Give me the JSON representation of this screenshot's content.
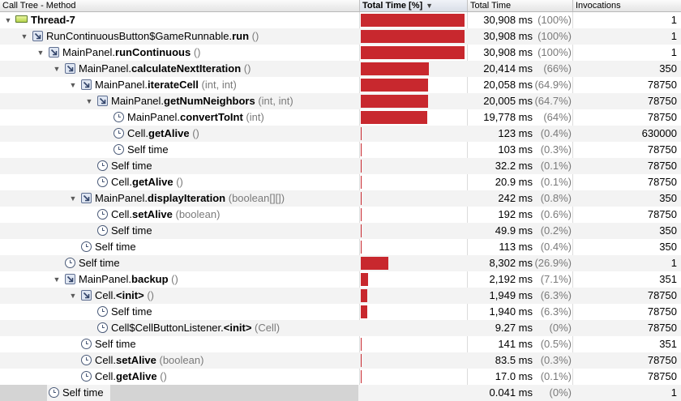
{
  "columns": {
    "method": "Call Tree - Method",
    "total_pct": "Total Time [%]",
    "total_time": "Total Time",
    "invocations": "Invocations"
  },
  "rows": [
    {
      "level": 0,
      "toggle": "open",
      "icon": "thread-icon",
      "cls": "",
      "method": "Thread-7",
      "args": "",
      "pct": 100,
      "time": "30,908 ms",
      "pct_label": "(100%)",
      "inv": "1"
    },
    {
      "level": 1,
      "toggle": "open",
      "icon": "call-icon",
      "cls": "RunContinuousButton$GameRunnable.",
      "method": "run",
      "args": " ()",
      "pct": 100,
      "time": "30,908 ms",
      "pct_label": "(100%)",
      "inv": "1"
    },
    {
      "level": 2,
      "toggle": "open",
      "icon": "call-icon",
      "cls": "MainPanel.",
      "method": "runContinuous",
      "args": " ()",
      "pct": 100,
      "time": "30,908 ms",
      "pct_label": "(100%)",
      "inv": "1"
    },
    {
      "level": 3,
      "toggle": "open",
      "icon": "call-icon",
      "cls": "MainPanel.",
      "method": "calculateNextIteration",
      "args": " ()",
      "pct": 66,
      "time": "20,414 ms",
      "pct_label": "(66%)",
      "inv": "350"
    },
    {
      "level": 4,
      "toggle": "open",
      "icon": "call-icon",
      "cls": "MainPanel.",
      "method": "iterateCell",
      "args": " (int, int)",
      "pct": 64.9,
      "time": "20,058 ms",
      "pct_label": "(64.9%)",
      "inv": "78750"
    },
    {
      "level": 5,
      "toggle": "open",
      "icon": "call-icon",
      "cls": "MainPanel.",
      "method": "getNumNeighbors",
      "args": " (int, int)",
      "pct": 64.7,
      "time": "20,005 ms",
      "pct_label": "(64.7%)",
      "inv": "78750"
    },
    {
      "level": 6,
      "toggle": "none",
      "icon": "clock-icon",
      "cls": "MainPanel.",
      "method": "convertToInt",
      "args": " (int)",
      "pct": 64,
      "time": "19,778 ms",
      "pct_label": "(64%)",
      "inv": "78750"
    },
    {
      "level": 6,
      "toggle": "none",
      "icon": "clock-icon",
      "cls": "Cell.",
      "method": "getAlive",
      "args": " ()",
      "pct": 0.4,
      "time": "123 ms",
      "pct_label": "(0.4%)",
      "inv": "630000"
    },
    {
      "level": 6,
      "toggle": "none",
      "icon": "clock-icon",
      "cls": "Self time",
      "method": "",
      "args": "",
      "pct": 0.3,
      "time": "103 ms",
      "pct_label": "(0.3%)",
      "inv": "78750"
    },
    {
      "level": 5,
      "toggle": "none",
      "icon": "clock-icon",
      "cls": "Self time",
      "method": "",
      "args": "",
      "pct": 0.1,
      "time": "32.2 ms",
      "pct_label": "(0.1%)",
      "inv": "78750"
    },
    {
      "level": 5,
      "toggle": "none",
      "icon": "clock-icon",
      "cls": "Cell.",
      "method": "getAlive",
      "args": " ()",
      "pct": 0.1,
      "time": "20.9 ms",
      "pct_label": "(0.1%)",
      "inv": "78750"
    },
    {
      "level": 4,
      "toggle": "open",
      "icon": "call-icon",
      "cls": "MainPanel.",
      "method": "displayIteration",
      "args": " (boolean[][])",
      "pct": 0.8,
      "time": "242 ms",
      "pct_label": "(0.8%)",
      "inv": "350"
    },
    {
      "level": 5,
      "toggle": "none",
      "icon": "clock-icon",
      "cls": "Cell.",
      "method": "setAlive",
      "args": " (boolean)",
      "pct": 0.6,
      "time": "192 ms",
      "pct_label": "(0.6%)",
      "inv": "78750"
    },
    {
      "level": 5,
      "toggle": "none",
      "icon": "clock-icon",
      "cls": "Self time",
      "method": "",
      "args": "",
      "pct": 0.2,
      "time": "49.9 ms",
      "pct_label": "(0.2%)",
      "inv": "350"
    },
    {
      "level": 4,
      "toggle": "none",
      "icon": "clock-icon",
      "cls": "Self time",
      "method": "",
      "args": "",
      "pct": 0.4,
      "time": "113 ms",
      "pct_label": "(0.4%)",
      "inv": "350"
    },
    {
      "level": 3,
      "toggle": "none",
      "icon": "clock-icon",
      "cls": "Self time",
      "method": "",
      "args": "",
      "pct": 26.9,
      "time": "8,302 ms",
      "pct_label": "(26.9%)",
      "inv": "1"
    },
    {
      "level": 3,
      "toggle": "open",
      "icon": "call-icon",
      "cls": "MainPanel.",
      "method": "backup",
      "args": " ()",
      "pct": 7.1,
      "time": "2,192 ms",
      "pct_label": "(7.1%)",
      "inv": "351"
    },
    {
      "level": 4,
      "toggle": "open",
      "icon": "call-icon",
      "cls": "Cell.",
      "method": "<init>",
      "args": " ()",
      "pct": 6.3,
      "time": "1,949 ms",
      "pct_label": "(6.3%)",
      "inv": "78750"
    },
    {
      "level": 5,
      "toggle": "none",
      "icon": "clock-icon",
      "cls": "Self time",
      "method": "",
      "args": "",
      "pct": 6.3,
      "time": "1,940 ms",
      "pct_label": "(6.3%)",
      "inv": "78750"
    },
    {
      "level": 5,
      "toggle": "none",
      "icon": "clock-icon",
      "cls": "Cell$CellButtonListener.",
      "method": "<init>",
      "args": " (Cell)",
      "pct": 0,
      "time": "9.27 ms",
      "pct_label": "(0%)",
      "inv": "78750"
    },
    {
      "level": 4,
      "toggle": "none",
      "icon": "clock-icon",
      "cls": "Self time",
      "method": "",
      "args": "",
      "pct": 0.5,
      "time": "141 ms",
      "pct_label": "(0.5%)",
      "inv": "351"
    },
    {
      "level": 4,
      "toggle": "none",
      "icon": "clock-icon",
      "cls": "Cell.",
      "method": "setAlive",
      "args": " (boolean)",
      "pct": 0.3,
      "time": "83.5 ms",
      "pct_label": "(0.3%)",
      "inv": "78750"
    },
    {
      "level": 4,
      "toggle": "none",
      "icon": "clock-icon",
      "cls": "Cell.",
      "method": "getAlive",
      "args": " ()",
      "pct": 0.1,
      "time": "17.0 ms",
      "pct_label": "(0.1%)",
      "inv": "78750"
    },
    {
      "level": 2,
      "toggle": "none",
      "icon": "clock-icon",
      "cls": "Self time",
      "method": "",
      "args": "",
      "pct": 0,
      "time": "0.041 ms",
      "pct_label": "(0%)",
      "inv": "1"
    }
  ],
  "colors": {
    "bar": "#c8282e",
    "alt_row": "#f3f3f3"
  },
  "sort": {
    "column": "total_pct",
    "direction": "descending"
  }
}
